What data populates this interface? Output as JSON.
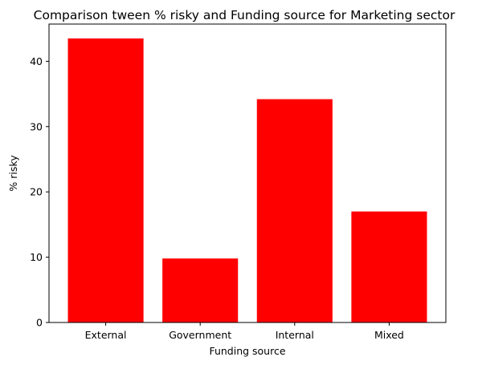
{
  "chart_data": {
    "type": "bar",
    "title": "Comparison tween % risky and Funding source for Marketing sector",
    "xlabel": "Funding source",
    "ylabel": "% risky",
    "categories": [
      "External",
      "Government",
      "Internal",
      "Mixed"
    ],
    "values": [
      43.5,
      9.8,
      34.2,
      17.0
    ],
    "ylim": [
      0,
      45.7
    ],
    "yticks": [
      0,
      10,
      20,
      30,
      40
    ],
    "bar_color": "#ff0000",
    "grid": false,
    "legend": "none"
  }
}
